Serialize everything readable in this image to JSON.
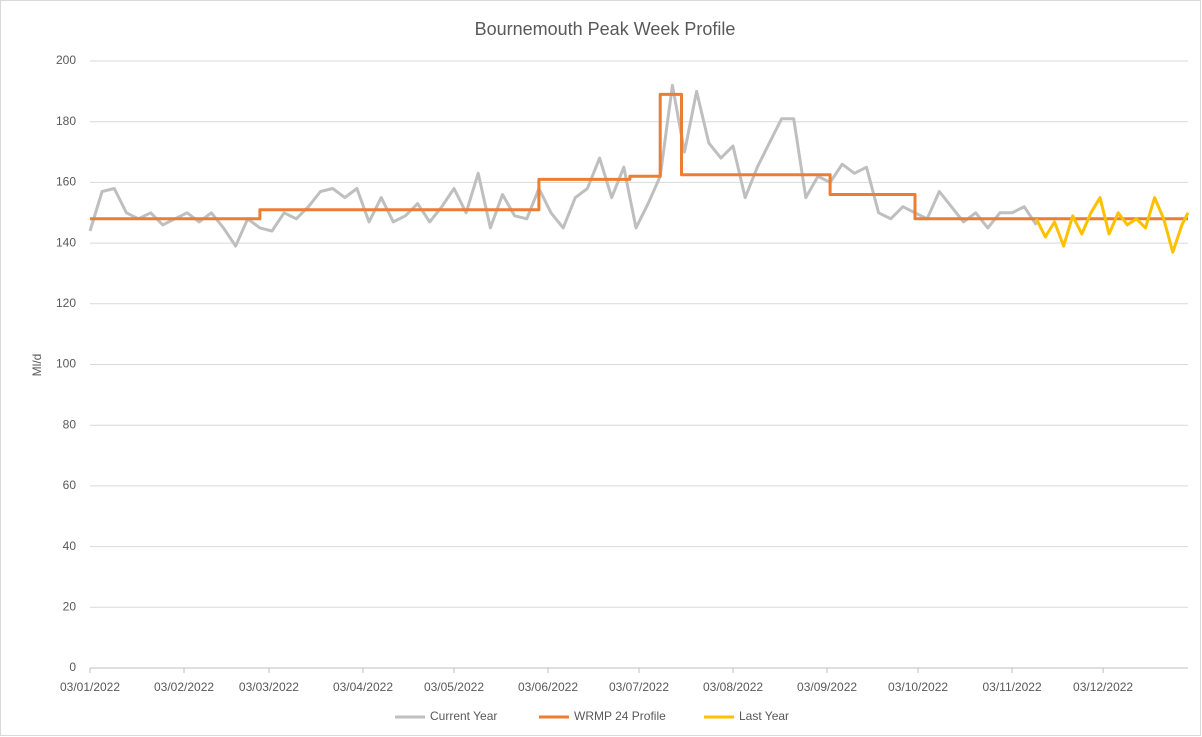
{
  "chart_data": {
    "type": "line",
    "title": "Bournemouth Peak Week Profile",
    "y_label": "Ml/d",
    "ylim": [
      0,
      200
    ],
    "yticks": [
      0,
      20,
      40,
      60,
      80,
      100,
      120,
      140,
      160,
      180,
      200
    ],
    "grid": true,
    "xlim": [
      "2022-01-03",
      "2022-12-31"
    ],
    "xticks": [
      {
        "value": "2022-01-03",
        "label": "03/01/2022"
      },
      {
        "value": "2022-02-03",
        "label": "03/02/2022"
      },
      {
        "value": "2022-03-03",
        "label": "03/03/2022"
      },
      {
        "value": "2022-04-03",
        "label": "03/04/2022"
      },
      {
        "value": "2022-05-03",
        "label": "03/05/2022"
      },
      {
        "value": "2022-06-03",
        "label": "03/06/2022"
      },
      {
        "value": "2022-07-03",
        "label": "03/07/2022"
      },
      {
        "value": "2022-08-03",
        "label": "03/08/2022"
      },
      {
        "value": "2022-09-03",
        "label": "03/09/2022"
      },
      {
        "value": "2022-10-03",
        "label": "03/10/2022"
      },
      {
        "value": "2022-11-03",
        "label": "03/11/2022"
      },
      {
        "value": "2022-12-03",
        "label": "03/12/2022"
      }
    ],
    "legend": "bottom",
    "series": [
      {
        "name": "Current Year",
        "color": "#bfbfbf",
        "x": [
          "2022-01-03",
          "2022-01-07",
          "2022-01-11",
          "2022-01-15",
          "2022-01-19",
          "2022-01-23",
          "2022-01-27",
          "2022-01-31",
          "2022-02-04",
          "2022-02-08",
          "2022-02-12",
          "2022-02-16",
          "2022-02-20",
          "2022-02-24",
          "2022-02-28",
          "2022-03-04",
          "2022-03-08",
          "2022-03-12",
          "2022-03-16",
          "2022-03-20",
          "2022-03-24",
          "2022-03-28",
          "2022-04-01",
          "2022-04-05",
          "2022-04-09",
          "2022-04-13",
          "2022-04-17",
          "2022-04-21",
          "2022-04-25",
          "2022-04-29",
          "2022-05-03",
          "2022-05-07",
          "2022-05-11",
          "2022-05-15",
          "2022-05-19",
          "2022-05-23",
          "2022-05-27",
          "2022-05-31",
          "2022-06-04",
          "2022-06-08",
          "2022-06-12",
          "2022-06-16",
          "2022-06-20",
          "2022-06-24",
          "2022-06-28",
          "2022-07-02",
          "2022-07-06",
          "2022-07-10",
          "2022-07-14",
          "2022-07-18",
          "2022-07-22",
          "2022-07-26",
          "2022-07-30",
          "2022-08-03",
          "2022-08-07",
          "2022-08-11",
          "2022-08-15",
          "2022-08-19",
          "2022-08-23",
          "2022-08-27",
          "2022-08-31",
          "2022-09-04",
          "2022-09-08",
          "2022-09-12",
          "2022-09-16",
          "2022-09-20",
          "2022-09-24",
          "2022-09-28",
          "2022-10-02",
          "2022-10-06",
          "2022-10-10",
          "2022-10-14",
          "2022-10-18",
          "2022-10-22",
          "2022-10-26",
          "2022-10-30",
          "2022-11-03",
          "2022-11-07",
          "2022-11-11"
        ],
        "values": [
          144,
          157,
          158,
          150,
          148,
          150,
          146,
          148,
          150,
          147,
          150,
          145,
          139,
          148,
          145,
          144,
          150,
          148,
          152,
          157,
          158,
          155,
          158,
          147,
          155,
          147,
          149,
          153,
          147,
          152,
          158,
          150,
          163,
          145,
          156,
          149,
          148,
          158,
          150,
          145,
          155,
          158,
          168,
          155,
          165,
          145,
          153,
          162,
          192,
          170,
          190,
          173,
          168,
          172,
          155,
          165,
          173,
          181,
          181,
          155,
          162,
          160,
          166,
          163,
          165,
          150,
          148,
          152,
          150,
          148,
          157,
          152,
          147,
          150,
          145,
          150,
          150,
          152,
          146
        ]
      },
      {
        "name": "WRMP 24 Profile",
        "color": "#ed7d31",
        "x": [
          "2022-01-03",
          "2022-02-28",
          "2022-02-28",
          "2022-05-31",
          "2022-05-31",
          "2022-06-30",
          "2022-06-30",
          "2022-07-10",
          "2022-07-10",
          "2022-07-17",
          "2022-07-17",
          "2022-09-04",
          "2022-09-04",
          "2022-10-02",
          "2022-10-02",
          "2022-12-31"
        ],
        "values": [
          148,
          148,
          151,
          151,
          161,
          161,
          162,
          162,
          189,
          189,
          162.5,
          162.5,
          156,
          156,
          148,
          148
        ]
      },
      {
        "name": "Last Year",
        "color": "#ffc000",
        "x": [
          "2022-11-11",
          "2022-11-14",
          "2022-11-17",
          "2022-11-20",
          "2022-11-23",
          "2022-11-26",
          "2022-11-29",
          "2022-12-02",
          "2022-12-05",
          "2022-12-08",
          "2022-12-11",
          "2022-12-14",
          "2022-12-17",
          "2022-12-20",
          "2022-12-23",
          "2022-12-26",
          "2022-12-29",
          "2022-12-31"
        ],
        "values": [
          148,
          142,
          147,
          139,
          149,
          143,
          150,
          155,
          143,
          150,
          146,
          148,
          145,
          155,
          148,
          137,
          146,
          150
        ]
      }
    ]
  }
}
